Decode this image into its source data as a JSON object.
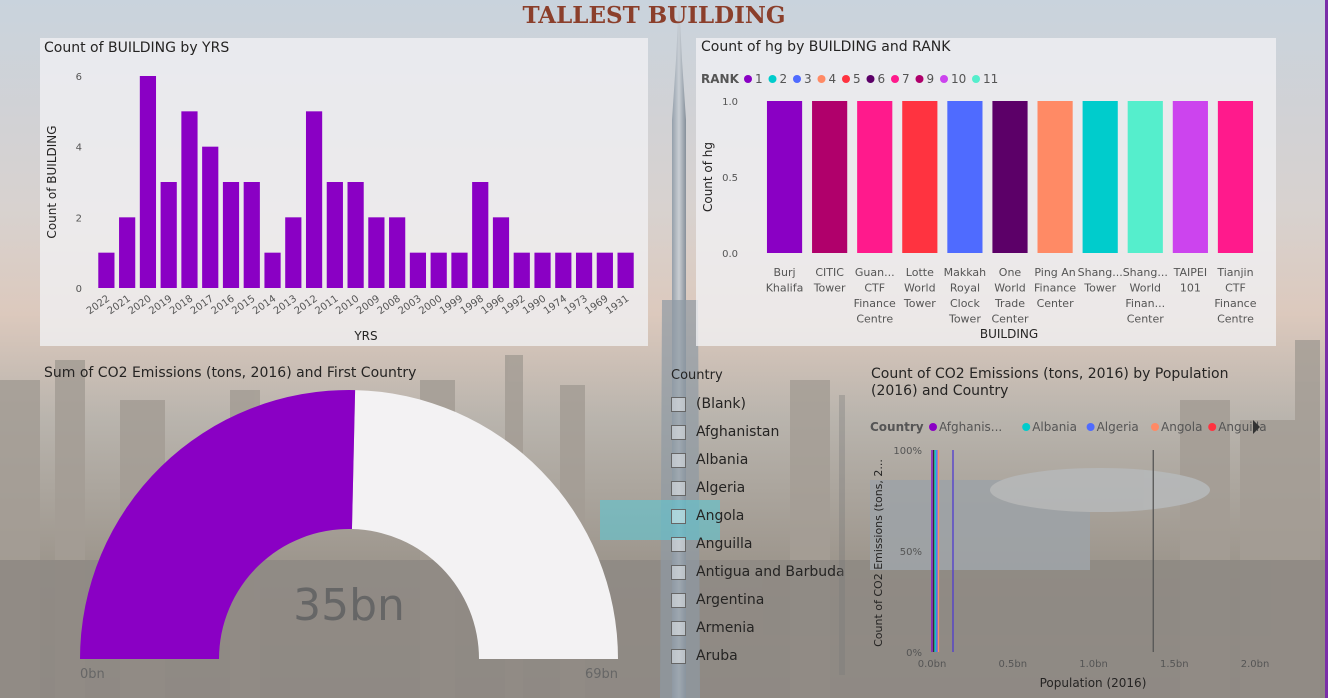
{
  "page_title": "TALLEST BUILDING",
  "colors": {
    "bar": "#8a00c4",
    "gauge_bg": "#f3f2f3"
  },
  "chart_data": [
    {
      "type": "bar",
      "title": "Count of BUILDING by YRS",
      "xlabel": "YRS",
      "ylabel": "Count of BUILDING",
      "ylim": [
        0,
        6
      ],
      "yticks": [
        "0",
        "2",
        "4",
        "6"
      ],
      "categories": [
        "2022",
        "2021",
        "2020",
        "2019",
        "2018",
        "2017",
        "2016",
        "2015",
        "2014",
        "2013",
        "2012",
        "2011",
        "2010",
        "2009",
        "2008",
        "2003",
        "2000",
        "1999",
        "1998",
        "1996",
        "1992",
        "1990",
        "1974",
        "1973",
        "1969",
        "1931"
      ],
      "values": [
        1,
        2,
        6,
        3,
        5,
        4,
        3,
        3,
        1,
        2,
        5,
        3,
        3,
        2,
        2,
        1,
        1,
        1,
        3,
        2,
        1,
        1,
        1,
        1,
        1,
        1
      ]
    },
    {
      "type": "bar",
      "title": "Count of hg by BUILDING and RANK",
      "xlabel": "BUILDING",
      "ylabel": "Count of hg",
      "legend_title": "RANK",
      "legend": [
        "1",
        "2",
        "3",
        "4",
        "5",
        "6",
        "7",
        "9",
        "10",
        "11"
      ],
      "legend_colors": [
        "#8a00c4",
        "#00cccc",
        "#4f6bff",
        "#ff8a65",
        "#ff3340",
        "#5c0068",
        "#ff1a8c",
        "#b0006b",
        "#cc44ee",
        "#55eecc"
      ],
      "ylim": [
        0,
        1
      ],
      "yticks": [
        "0.0",
        "0.5",
        "1.0"
      ],
      "categories": [
        [
          "Burj",
          "Khalifa"
        ],
        [
          "CITIC",
          "Tower"
        ],
        [
          "Guan...",
          "CTF",
          "Finance",
          "Centre"
        ],
        [
          "Lotte",
          "World",
          "Tower"
        ],
        [
          "Makkah",
          "Royal",
          "Clock",
          "Tower"
        ],
        [
          "One",
          "World",
          "Trade",
          "Center"
        ],
        [
          "Ping An",
          "Finance",
          "Center"
        ],
        [
          "Shang...",
          "Tower"
        ],
        [
          "Shang...",
          "World",
          "Finan...",
          "Center"
        ],
        [
          "TAIPEI",
          "101"
        ],
        [
          "Tianjin",
          "CTF",
          "Finance",
          "Centre"
        ]
      ],
      "values": [
        1,
        1,
        1,
        1,
        1,
        1,
        1,
        1,
        1,
        1,
        1
      ],
      "bar_colors": [
        "#8a00c4",
        "#b0006b",
        "#ff1a8c",
        "#ff3340",
        "#4f6bff",
        "#5c0068",
        "#ff8a65",
        "#00cccc",
        "#55eecc",
        "#cc44ee",
        "#ff1a8c"
      ]
    },
    {
      "type": "gauge",
      "title": "Sum of CO2 Emissions (tons, 2016) and First Country",
      "value_label": "35bn",
      "min_label": "0bn",
      "max_label": "69bn",
      "value": 35,
      "min": 0,
      "max": 69
    },
    {
      "type": "line",
      "title_lines": [
        "Count of CO2 Emissions (tons, 2016) by Population",
        "(2016) and Country"
      ],
      "xlabel": "Population (2016)",
      "ylabel": "Count of CO2 Emissions (tons, 2...",
      "legend_title": "Country",
      "legend": [
        "Afghanis...",
        "Albania",
        "Algeria",
        "Angola",
        "Anguilla"
      ],
      "legend_colors": [
        "#8a00c4",
        "#00cccc",
        "#4f6bff",
        "#ff8a65",
        "#ff3340"
      ],
      "xticks": [
        "0.0bn",
        "0.5bn",
        "1.0bn",
        "1.5bn",
        "2.0bn"
      ],
      "yticks": [
        "0%",
        "50%",
        "100%"
      ],
      "xlim": [
        0,
        2.0
      ],
      "lines_x": [
        0.0,
        0.01,
        0.02,
        0.03,
        0.04,
        0.13,
        1.37
      ],
      "line_colors": [
        "#8a00c4",
        "#333333",
        "#00cccc",
        "#4f6bff",
        "#ff8a65",
        "#4f3bd0",
        "#555555"
      ]
    }
  ],
  "slicer": {
    "header": "Country",
    "items": [
      "(Blank)",
      "Afghanistan",
      "Albania",
      "Algeria",
      "Angola",
      "Anguilla",
      "Antigua and Barbuda",
      "Argentina",
      "Armenia",
      "Aruba"
    ]
  }
}
